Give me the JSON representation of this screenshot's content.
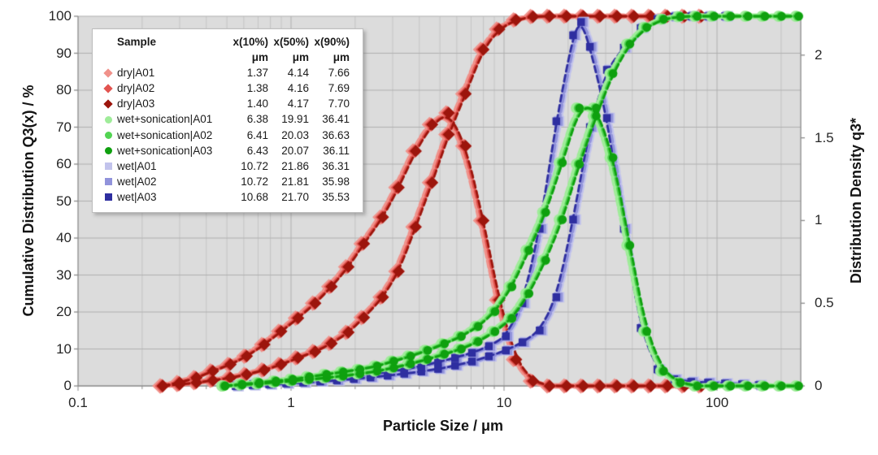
{
  "figure": {
    "x_title": "Particle Size / μm",
    "y_left_title": "Cumulative Distribution Q3(x) / %",
    "y_right_title": "Distribution Density q3*"
  },
  "legend": {
    "title": "Sample",
    "col_headers": [
      "x(10%)",
      "x(50%)",
      "x(90%)"
    ],
    "unit_row": [
      "μm",
      "μm",
      "μm"
    ],
    "rows": [
      {
        "label": "dry|A01",
        "marker": "diamond",
        "color": "#f0918a",
        "values": [
          "1.37",
          "4.14",
          "7.66"
        ]
      },
      {
        "label": "dry|A02",
        "marker": "diamond",
        "color": "#e25450",
        "values": [
          "1.38",
          "4.16",
          "7.69"
        ]
      },
      {
        "label": "dry|A03",
        "marker": "diamond",
        "color": "#9c150c",
        "values": [
          "1.40",
          "4.17",
          "7.70"
        ]
      },
      {
        "label": "wet+sonication|A01",
        "marker": "circle",
        "color": "#9fec99",
        "values": [
          "6.38",
          "19.91",
          "36.41"
        ]
      },
      {
        "label": "wet+sonication|A02",
        "marker": "circle",
        "color": "#52d452",
        "values": [
          "6.41",
          "20.03",
          "36.63"
        ]
      },
      {
        "label": "wet+sonication|A03",
        "marker": "circle",
        "color": "#0fa00f",
        "values": [
          "6.43",
          "20.07",
          "36.11"
        ]
      },
      {
        "label": "wet|A01",
        "marker": "square",
        "color": "#c2c3ec",
        "values": [
          "10.72",
          "21.86",
          "36.31"
        ]
      },
      {
        "label": "wet|A02",
        "marker": "square",
        "color": "#9193db",
        "values": [
          "10.72",
          "21.81",
          "35.98"
        ]
      },
      {
        "label": "wet|A03",
        "marker": "square",
        "color": "#2e2ea0",
        "values": [
          "10.68",
          "21.70",
          "35.53"
        ]
      }
    ]
  },
  "chart_data": {
    "type": "line",
    "title": "",
    "x_axis": {
      "label": "Particle Size / μm",
      "scale": "log",
      "min": 0.1,
      "max": 250,
      "ticks": [
        0.1,
        1,
        10,
        100
      ],
      "tick_labels": [
        "0.1",
        "1",
        "10",
        "100"
      ]
    },
    "y_axis_left": {
      "label": "Cumulative Distribution Q3(x) / %",
      "min": 0,
      "max": 100,
      "ticks": [
        0,
        10,
        20,
        30,
        40,
        50,
        60,
        70,
        80,
        90,
        100
      ],
      "tick_labels": [
        "0",
        "10",
        "20",
        "30",
        "40",
        "50",
        "60",
        "70",
        "80",
        "90",
        "100"
      ]
    },
    "y_axis_right": {
      "label": "Distribution Density q3*",
      "min": 0,
      "max": 2.235,
      "ticks": [
        0,
        0.5,
        1,
        1.5,
        2
      ],
      "tick_labels": [
        "0",
        "0.5",
        "1",
        "1.5",
        "2"
      ]
    },
    "grid": true,
    "legend_position": "top-left",
    "line_style": "dashed",
    "groups": [
      {
        "name": "dry",
        "marker": "diamond",
        "replicates": [
          {
            "label": "dry|A01",
            "color": "#f0918a",
            "x10": 1.37,
            "x50": 4.14,
            "x90": 7.66
          },
          {
            "label": "dry|A02",
            "color": "#e25450",
            "x10": 1.38,
            "x50": 4.16,
            "x90": 7.69
          },
          {
            "label": "dry|A03",
            "color": "#9c150c",
            "x10": 1.4,
            "x50": 4.17,
            "x90": 7.7
          }
        ],
        "cumulative_pct": [
          [
            0.25,
            0
          ],
          [
            0.3,
            0.4
          ],
          [
            0.36,
            0.9
          ],
          [
            0.43,
            1.5
          ],
          [
            0.52,
            2.2
          ],
          [
            0.62,
            3.1
          ],
          [
            0.75,
            4.3
          ],
          [
            0.9,
            5.8
          ],
          [
            1.08,
            7.6
          ],
          [
            1.3,
            9.3
          ],
          [
            1.55,
            11.5
          ],
          [
            1.86,
            14.5
          ],
          [
            2.2,
            18.5
          ],
          [
            2.7,
            24
          ],
          [
            3.2,
            31
          ],
          [
            3.85,
            43
          ],
          [
            4.6,
            55
          ],
          [
            5.5,
            68
          ],
          [
            6.6,
            79
          ],
          [
            8.0,
            91
          ],
          [
            9.5,
            96.5
          ],
          [
            11.4,
            99
          ],
          [
            13.7,
            99.9
          ],
          [
            16.4,
            100
          ],
          [
            19.7,
            100
          ],
          [
            23.6,
            100
          ],
          [
            28.3,
            100
          ],
          [
            34,
            100
          ],
          [
            40.8,
            100
          ],
          [
            49,
            100
          ],
          [
            58.7,
            100
          ],
          [
            70.5,
            100
          ],
          [
            84.6,
            100
          ]
        ],
        "density_q3": [
          [
            0.25,
            0
          ],
          [
            0.3,
            0.02
          ],
          [
            0.36,
            0.05
          ],
          [
            0.43,
            0.09
          ],
          [
            0.52,
            0.13
          ],
          [
            0.62,
            0.18
          ],
          [
            0.75,
            0.25
          ],
          [
            0.9,
            0.33
          ],
          [
            1.08,
            0.41
          ],
          [
            1.3,
            0.5
          ],
          [
            1.55,
            0.6
          ],
          [
            1.86,
            0.72
          ],
          [
            2.2,
            0.86
          ],
          [
            2.7,
            1.02
          ],
          [
            3.2,
            1.2
          ],
          [
            3.85,
            1.42
          ],
          [
            4.6,
            1.58
          ],
          [
            5.5,
            1.65
          ],
          [
            6.6,
            1.45
          ],
          [
            8.0,
            1.0
          ],
          [
            9.5,
            0.52
          ],
          [
            11.4,
            0.16
          ],
          [
            13.7,
            0.03
          ],
          [
            16.4,
            0
          ],
          [
            19.7,
            0
          ],
          [
            23.6,
            0
          ],
          [
            28.3,
            0
          ],
          [
            34,
            0
          ],
          [
            40.8,
            0
          ],
          [
            49,
            0
          ],
          [
            58.7,
            0
          ],
          [
            70.5,
            0
          ],
          [
            84.6,
            0
          ]
        ]
      },
      {
        "name": "wet",
        "marker": "square",
        "replicates": [
          {
            "label": "wet|A01",
            "color": "#c2c3ec",
            "x10": 10.72,
            "x50": 21.86,
            "x90": 36.31
          },
          {
            "label": "wet|A02",
            "color": "#9193db",
            "x10": 10.72,
            "x50": 21.81,
            "x90": 35.98
          },
          {
            "label": "wet|A03",
            "color": "#2e2ea0",
            "x10": 10.68,
            "x50": 21.7,
            "x90": 35.53
          }
        ],
        "cumulative_pct": [
          [
            0.55,
            0
          ],
          [
            0.66,
            0.2
          ],
          [
            0.79,
            0.4
          ],
          [
            0.95,
            0.65
          ],
          [
            1.14,
            0.9
          ],
          [
            1.37,
            1.2
          ],
          [
            1.64,
            1.5
          ],
          [
            1.97,
            1.9
          ],
          [
            2.36,
            2.3
          ],
          [
            2.84,
            2.8
          ],
          [
            3.4,
            3.3
          ],
          [
            4.09,
            3.9
          ],
          [
            4.9,
            4.6
          ],
          [
            5.89,
            5.5
          ],
          [
            7.07,
            6.6
          ],
          [
            8.48,
            8.0
          ],
          [
            10.2,
            9.6
          ],
          [
            12.2,
            11.8
          ],
          [
            14.7,
            15
          ],
          [
            17.6,
            24
          ],
          [
            21.1,
            45
          ],
          [
            25.3,
            70
          ],
          [
            30.4,
            85.5
          ],
          [
            36.5,
            91.5
          ],
          [
            43.8,
            96.8
          ],
          [
            52.5,
            99.2
          ],
          [
            63.0,
            99.9
          ],
          [
            75.6,
            100
          ],
          [
            90.7,
            100
          ],
          [
            109,
            100
          ]
        ],
        "density_q3": [
          [
            0.55,
            0
          ],
          [
            0.66,
            0.01
          ],
          [
            0.79,
            0.015
          ],
          [
            0.95,
            0.02
          ],
          [
            1.14,
            0.03
          ],
          [
            1.37,
            0.04
          ],
          [
            1.64,
            0.05
          ],
          [
            1.97,
            0.06
          ],
          [
            2.36,
            0.07
          ],
          [
            2.84,
            0.085
          ],
          [
            3.4,
            0.1
          ],
          [
            4.09,
            0.12
          ],
          [
            4.9,
            0.145
          ],
          [
            5.89,
            0.17
          ],
          [
            7.07,
            0.2
          ],
          [
            8.48,
            0.24
          ],
          [
            10.2,
            0.3
          ],
          [
            12.2,
            0.5
          ],
          [
            14.7,
            0.95
          ],
          [
            17.6,
            1.6
          ],
          [
            21.1,
            2.12
          ],
          [
            23.0,
            2.2
          ],
          [
            25.3,
            2.05
          ],
          [
            30.4,
            1.62
          ],
          [
            36.5,
            0.95
          ],
          [
            43.8,
            0.35
          ],
          [
            52.5,
            0.1
          ],
          [
            63.0,
            0.04
          ],
          [
            75.6,
            0.025
          ],
          [
            90.7,
            0.02
          ],
          [
            109,
            0.015
          ],
          [
            131,
            0.01
          ],
          [
            157,
            0.005
          ]
        ]
      },
      {
        "name": "wet+sonication",
        "marker": "circle",
        "replicates": [
          {
            "label": "wet+sonication|A01",
            "color": "#9fec99",
            "x10": 6.38,
            "x50": 19.91,
            "x90": 36.41
          },
          {
            "label": "wet+sonication|A02",
            "color": "#52d452",
            "x10": 6.41,
            "x50": 20.03,
            "x90": 36.63
          },
          {
            "label": "wet+sonication|A03",
            "color": "#0fa00f",
            "x10": 6.43,
            "x50": 20.07,
            "x90": 36.11
          }
        ],
        "cumulative_pct": [
          [
            0.49,
            0
          ],
          [
            0.59,
            0.3
          ],
          [
            0.71,
            0.6
          ],
          [
            0.85,
            1.0
          ],
          [
            1.02,
            1.35
          ],
          [
            1.22,
            1.75
          ],
          [
            1.47,
            2.2
          ],
          [
            1.76,
            2.7
          ],
          [
            2.11,
            3.3
          ],
          [
            2.54,
            4.0
          ],
          [
            3.04,
            4.9
          ],
          [
            3.65,
            6.0
          ],
          [
            4.38,
            7.2
          ],
          [
            5.26,
            8.6
          ],
          [
            6.31,
            10.0
          ],
          [
            7.57,
            12.0
          ],
          [
            9.08,
            14.7
          ],
          [
            10.9,
            18.3
          ],
          [
            13.1,
            25
          ],
          [
            15.7,
            34
          ],
          [
            18.8,
            45
          ],
          [
            22.6,
            60
          ],
          [
            27.1,
            73
          ],
          [
            32.5,
            84.5
          ],
          [
            39.0,
            92.5
          ],
          [
            46.8,
            97
          ],
          [
            56.2,
            99.2
          ],
          [
            67.4,
            99.9
          ],
          [
            80.9,
            100
          ],
          [
            97.1,
            100
          ],
          [
            116,
            100
          ],
          [
            140,
            100
          ],
          [
            168,
            100
          ],
          [
            201,
            100
          ],
          [
            242,
            100
          ]
        ],
        "density_q3": [
          [
            0.49,
            0
          ],
          [
            0.59,
            0.01
          ],
          [
            0.71,
            0.02
          ],
          [
            0.85,
            0.03
          ],
          [
            1.02,
            0.04
          ],
          [
            1.22,
            0.055
          ],
          [
            1.47,
            0.07
          ],
          [
            1.76,
            0.085
          ],
          [
            2.11,
            0.1
          ],
          [
            2.54,
            0.12
          ],
          [
            3.04,
            0.15
          ],
          [
            3.65,
            0.18
          ],
          [
            4.38,
            0.215
          ],
          [
            5.26,
            0.255
          ],
          [
            6.31,
            0.3
          ],
          [
            7.57,
            0.36
          ],
          [
            9.08,
            0.45
          ],
          [
            10.9,
            0.6
          ],
          [
            13.1,
            0.82
          ],
          [
            15.7,
            1.05
          ],
          [
            18.8,
            1.35
          ],
          [
            22.6,
            1.68
          ],
          [
            27.1,
            1.68
          ],
          [
            32.5,
            1.38
          ],
          [
            39.0,
            0.85
          ],
          [
            46.8,
            0.33
          ],
          [
            56.2,
            0.09
          ],
          [
            67.4,
            0.02
          ],
          [
            80.9,
            0
          ],
          [
            97.1,
            0
          ],
          [
            116,
            0
          ],
          [
            140,
            0
          ],
          [
            168,
            0
          ],
          [
            201,
            0
          ],
          [
            242,
            0
          ]
        ]
      }
    ]
  }
}
